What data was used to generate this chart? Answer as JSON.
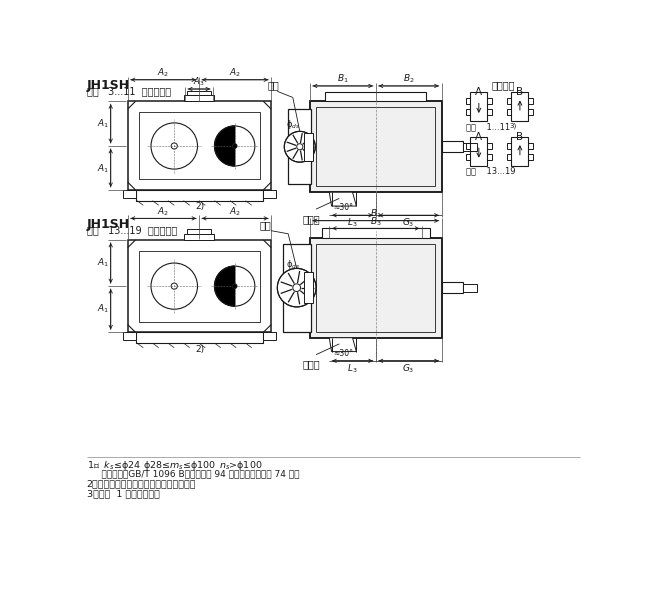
{
  "bg_color": "#ffffff",
  "lc": "#1a1a1a",
  "tc": "#1a1a1a",
  "title1": "JH1SH",
  "sub1": "规格   3...11  带冷却风扇",
  "title2": "JH1SH",
  "sub2": "规格   13...19  带冷却风扇",
  "layout_label": "布置形式",
  "spec1": "规格    1...11",
  "spec1_sup": "3)",
  "spec2": "规格    13...19",
  "fan_label": "风扇",
  "air_label": "进气孔",
  "note1a": "1）  k",
  "note1b": "≤ϕ24",
  "note1c": "ϕ28≤m",
  "note1d": "≤ϕ100",
  "note1e": "n",
  "note1f": ">ϕ100",
  "note1g": "     轴端平键为GB/T 1096 B型，参见第 94 页；中心孔参见第 74 页。",
  "note2": "2）在安装基础螺栓前，应先拆下风扇罩。",
  "note3": "3）规格  1 号不带风扇。",
  "dpi": 100,
  "fig_w": 6.5,
  "fig_h": 6.07
}
